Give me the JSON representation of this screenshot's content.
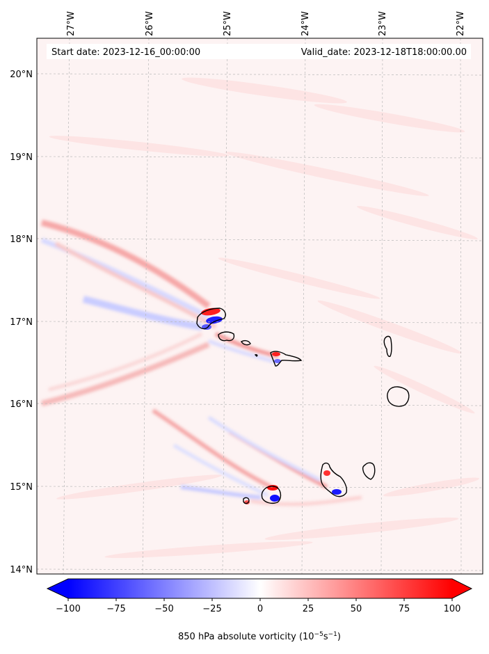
{
  "header": {
    "start_date": "Start date: 2023-12-16_00:00:00",
    "valid_date": "Valid_date: 2023-12-18T18:00:00.00"
  },
  "longitude_labels": [
    "27°W",
    "26°W",
    "25°W",
    "24°W",
    "23°W",
    "22°W"
  ],
  "latitude_labels": [
    "20°N",
    "19°N",
    "18°N",
    "17°N",
    "16°N",
    "15°N",
    "14°N"
  ],
  "colorbar": {
    "ticks": [
      "−100",
      "−75",
      "−50",
      "−25",
      "0",
      "25",
      "50",
      "75",
      "100"
    ],
    "label_main": "850 hPa absolute vorticity (10",
    "label_exp1": "−5",
    "label_mid": "s",
    "label_exp2": "−1",
    "label_end": ")",
    "range": [
      -100,
      100
    ],
    "extend": "both",
    "colormap": "bwr",
    "color_min": "#0000ff",
    "color_mid": "#ffffff",
    "color_max": "#ff0000"
  },
  "map_extent": {
    "lon": [
      -27.3,
      -21.8
    ],
    "lat": [
      13.95,
      20.45
    ]
  }
}
